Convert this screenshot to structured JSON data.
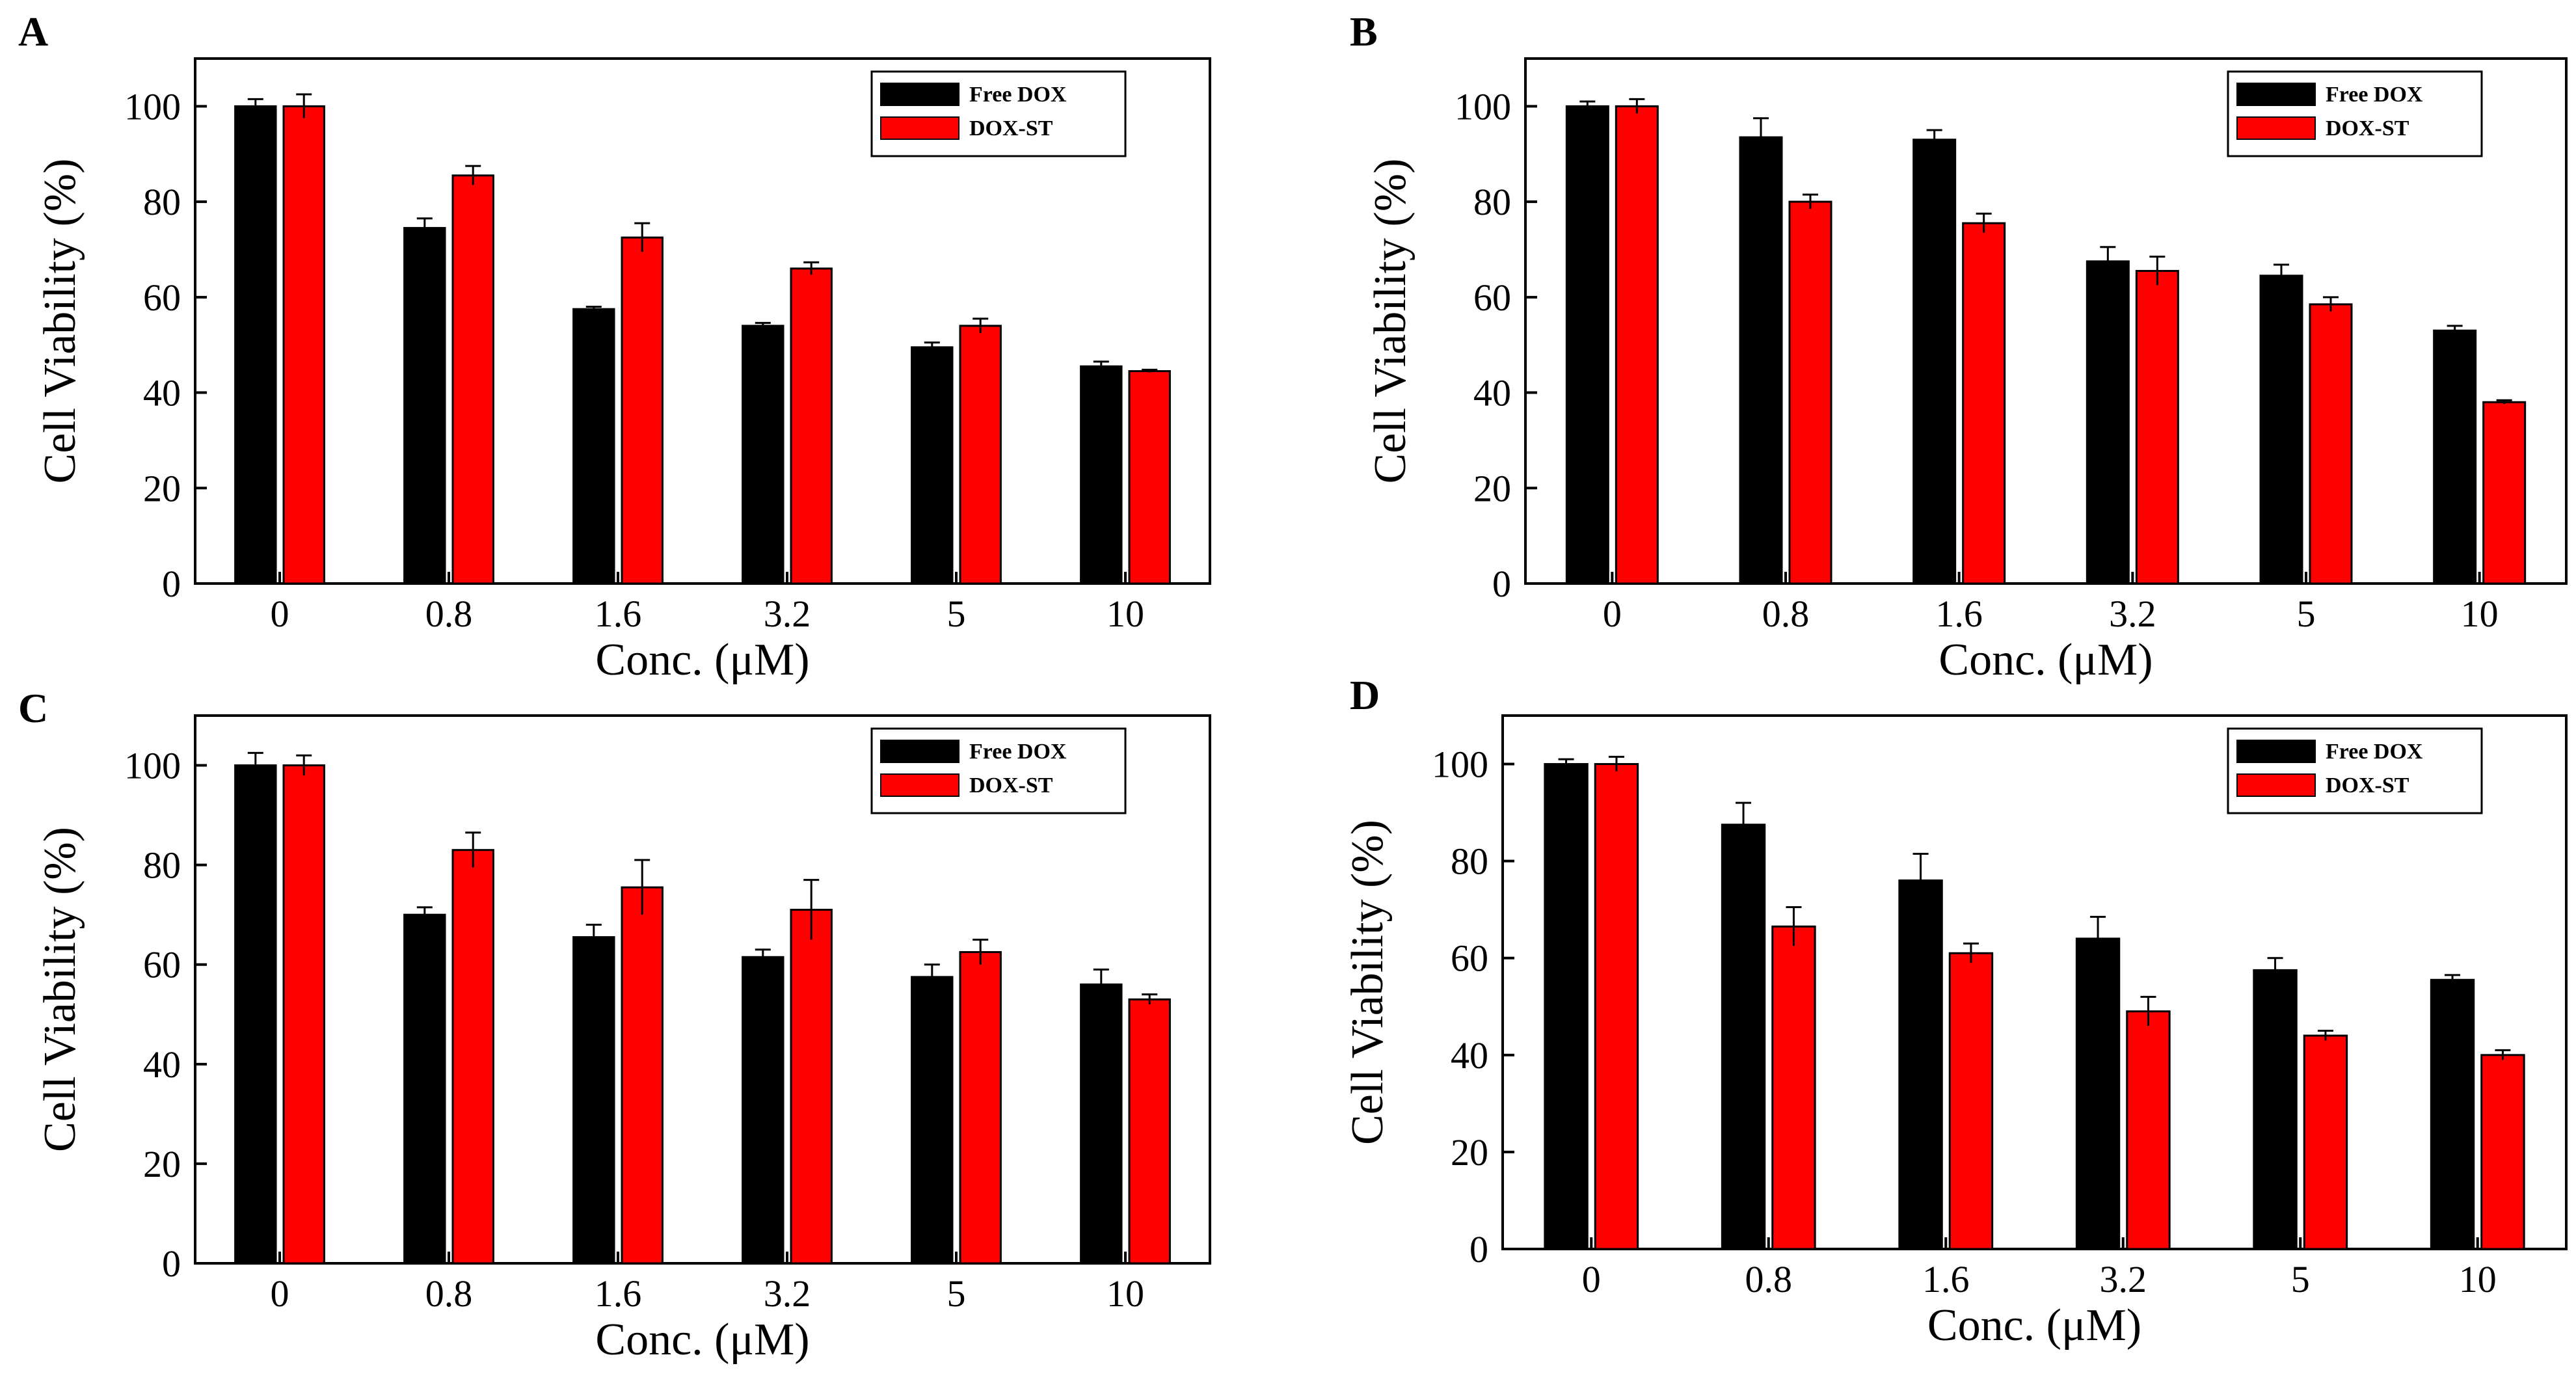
{
  "colors": {
    "free_dox": "#000000",
    "dox_st": "#ff0000",
    "axis": "#000000",
    "background": "#ffffff"
  },
  "chart_data": [
    {
      "panel": "A",
      "type": "bar",
      "categories": [
        "0",
        "0.8",
        "1.6",
        "3.2",
        "5",
        "10"
      ],
      "series": [
        {
          "name": "Free DOX",
          "values": [
            100,
            74.5,
            57.5,
            54,
            49.5,
            45.5
          ],
          "errors": [
            1.5,
            2,
            0.5,
            0.6,
            1,
            1
          ]
        },
        {
          "name": "DOX-ST",
          "values": [
            100,
            85.5,
            72.5,
            66,
            54,
            44.5
          ],
          "errors": [
            2.5,
            2,
            3,
            1.3,
            1.5,
            0.3
          ]
        }
      ],
      "xlabel": "Conc. (μM)",
      "ylabel": "Cell Viability (%)",
      "ylim": [
        0,
        110
      ],
      "yticks": [
        0,
        20,
        40,
        60,
        80,
        100
      ],
      "legend": [
        "Free DOX",
        "DOX-ST"
      ],
      "legend_position": "top-right"
    },
    {
      "panel": "B",
      "type": "bar",
      "categories": [
        "0",
        "0.8",
        "1.6",
        "3.2",
        "5",
        "10"
      ],
      "series": [
        {
          "name": "Free DOX",
          "values": [
            100,
            93.5,
            93,
            67.5,
            64.5,
            53
          ],
          "errors": [
            1,
            4,
            2,
            3,
            2.3,
            1
          ]
        },
        {
          "name": "DOX-ST",
          "values": [
            100,
            80,
            75.5,
            65.5,
            58.5,
            38
          ],
          "errors": [
            1.5,
            1.5,
            2,
            3,
            1.5,
            0.4
          ]
        }
      ],
      "xlabel": "Conc. (μM)",
      "ylabel": "Cell Viability (%)",
      "ylim": [
        0,
        110
      ],
      "yticks": [
        0,
        20,
        40,
        60,
        80,
        100
      ],
      "legend": [
        "Free DOX",
        "DOX-ST"
      ],
      "legend_position": "top-right"
    },
    {
      "panel": "C",
      "type": "bar",
      "categories": [
        "0",
        "0.8",
        "1.6",
        "3.2",
        "5",
        "10"
      ],
      "series": [
        {
          "name": "Free DOX",
          "values": [
            100,
            70,
            65.5,
            61.5,
            57.5,
            56
          ],
          "errors": [
            2.5,
            1.5,
            2.5,
            1.5,
            2.5,
            3
          ]
        },
        {
          "name": "DOX-ST",
          "values": [
            100,
            83,
            75.5,
            71,
            62.5,
            53
          ],
          "errors": [
            2,
            3.5,
            5.5,
            6,
            2.5,
            1
          ]
        }
      ],
      "xlabel": "Conc. (μM)",
      "ylabel": "Cell Viability (%)",
      "ylim": [
        0,
        110
      ],
      "yticks": [
        0,
        20,
        40,
        60,
        80,
        100
      ],
      "legend": [
        "Free DOX",
        "DOX-ST"
      ],
      "legend_position": "top-right"
    },
    {
      "panel": "D",
      "type": "bar",
      "categories": [
        "0",
        "0.8",
        "1.6",
        "3.2",
        "5",
        "10"
      ],
      "series": [
        {
          "name": "Free DOX",
          "values": [
            100,
            87.5,
            76,
            64,
            57.5,
            55.5
          ],
          "errors": [
            1,
            4.5,
            5.5,
            4.5,
            2.5,
            1
          ]
        },
        {
          "name": "DOX-ST",
          "values": [
            100,
            66.5,
            61,
            49,
            44,
            40
          ],
          "errors": [
            1.5,
            4,
            2,
            3,
            1,
            1
          ]
        }
      ],
      "xlabel": "Conc. (μM)",
      "ylabel": "Cell Viability (%)",
      "ylim": [
        0,
        110
      ],
      "yticks": [
        0,
        20,
        40,
        60,
        80,
        100
      ],
      "legend": [
        "Free DOX",
        "DOX-ST"
      ],
      "legend_position": "top-right"
    }
  ]
}
